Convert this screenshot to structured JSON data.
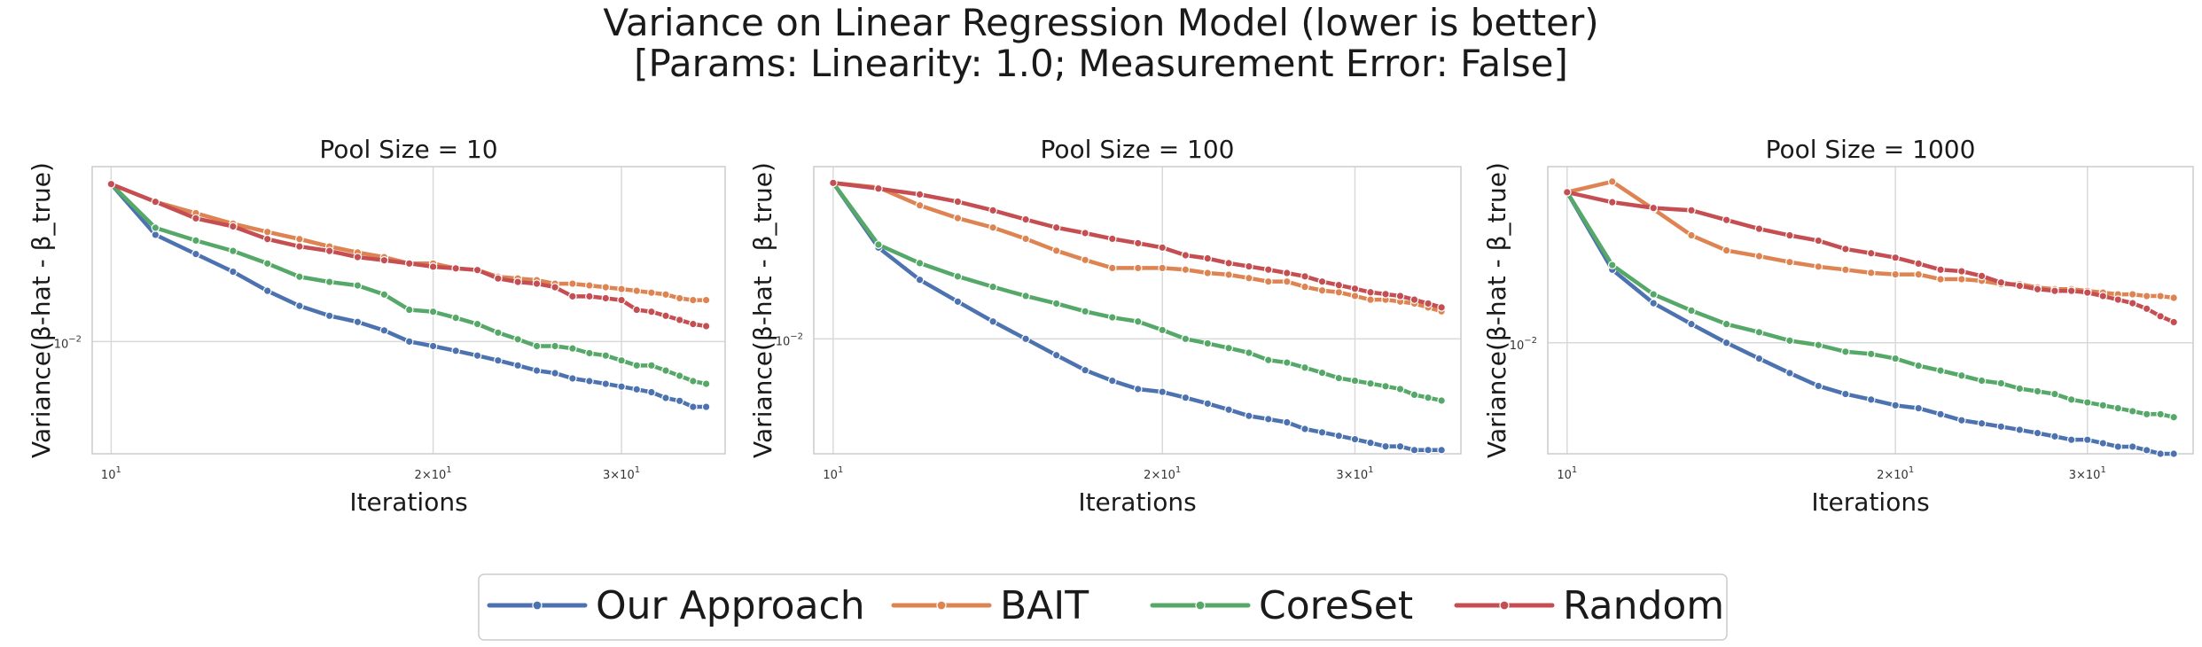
{
  "figure": {
    "title_line1": "Variance on Linear Regression Model (lower is better)",
    "title_line2": "[Params: Linearity: 1.0; Measurement Error: False]"
  },
  "colors": {
    "Our Approach": "#4c72b0",
    "BAIT": "#dd8452",
    "CoreSet": "#55a868",
    "Random": "#c44e52",
    "grid": "#d9d9d9",
    "frame": "#cccccc"
  },
  "legend": {
    "placement": "bottom-center",
    "entries": [
      "Our Approach",
      "BAIT",
      "CoreSet",
      "Random"
    ]
  },
  "chart_data": [
    {
      "type": "line",
      "title": "Pool Size = 10",
      "xlabel": "Iterations",
      "ylabel": "Variance(β-hat - β_true)",
      "xscale": "log",
      "yscale": "log",
      "xlim": [
        9.6,
        37.5
      ],
      "ylim": [
        0.0061,
        0.0216
      ],
      "xticks": [
        {
          "value": 10,
          "base": "10",
          "exp": "1"
        },
        {
          "value": 20,
          "base": "2×10",
          "exp": "1"
        },
        {
          "value": 30,
          "base": "3×10",
          "exp": "1"
        }
      ],
      "yticks": [
        {
          "value": 0.01,
          "base": "10",
          "exp": "−2"
        }
      ],
      "grid": true,
      "x": [
        10,
        11,
        12,
        13,
        14,
        15,
        16,
        17,
        18,
        19,
        20,
        21,
        22,
        23,
        24,
        25,
        26,
        27,
        28,
        29,
        30,
        31,
        32,
        33,
        34,
        35,
        36
      ],
      "series": [
        {
          "name": "Our Approach",
          "values": [
            0.02,
            0.016,
            0.0147,
            0.0136,
            0.0125,
            0.0117,
            0.0112,
            0.0109,
            0.0105,
            0.01,
            0.0098,
            0.0096,
            0.0094,
            0.0092,
            0.009,
            0.0088,
            0.0087,
            0.0085,
            0.0084,
            0.0083,
            0.0082,
            0.0081,
            0.008,
            0.0078,
            0.0077,
            0.0075,
            0.0075
          ]
        },
        {
          "name": "BAIT",
          "values": [
            0.02,
            0.0185,
            0.0176,
            0.0168,
            0.0162,
            0.0157,
            0.0152,
            0.0148,
            0.0145,
            0.0141,
            0.0141,
            0.0138,
            0.0137,
            0.0133,
            0.0132,
            0.0131,
            0.0129,
            0.0129,
            0.0128,
            0.0127,
            0.0126,
            0.0125,
            0.0124,
            0.0123,
            0.0121,
            0.012,
            0.012
          ]
        },
        {
          "name": "CoreSet",
          "values": [
            0.02,
            0.0165,
            0.0156,
            0.0149,
            0.0141,
            0.0133,
            0.013,
            0.0128,
            0.0123,
            0.0115,
            0.0114,
            0.0111,
            0.0108,
            0.0104,
            0.0101,
            0.0098,
            0.0098,
            0.0097,
            0.0095,
            0.0094,
            0.0092,
            0.009,
            0.009,
            0.0088,
            0.0086,
            0.0084,
            0.0083
          ]
        },
        {
          "name": "Random",
          "values": [
            0.02,
            0.0185,
            0.0172,
            0.0166,
            0.0157,
            0.0152,
            0.0149,
            0.0145,
            0.0143,
            0.0141,
            0.0139,
            0.0138,
            0.0137,
            0.0132,
            0.013,
            0.0129,
            0.0127,
            0.0122,
            0.0122,
            0.0121,
            0.012,
            0.0115,
            0.0114,
            0.0112,
            0.011,
            0.0108,
            0.0107
          ]
        }
      ]
    },
    {
      "type": "line",
      "title": "Pool Size = 100",
      "xlabel": "Iterations",
      "ylabel": "Variance(β-hat - β_true)",
      "xscale": "log",
      "yscale": "log",
      "xlim": [
        9.6,
        37.5
      ],
      "ylim": [
        0.006,
        0.0215
      ],
      "xticks": [
        {
          "value": 10,
          "base": "10",
          "exp": "1"
        },
        {
          "value": 20,
          "base": "2×10",
          "exp": "1"
        },
        {
          "value": 30,
          "base": "3×10",
          "exp": "1"
        }
      ],
      "yticks": [
        {
          "value": 0.01,
          "base": "10",
          "exp": "−2"
        }
      ],
      "grid": true,
      "x": [
        10,
        11,
        12,
        13,
        14,
        15,
        16,
        17,
        18,
        19,
        20,
        21,
        22,
        23,
        24,
        25,
        26,
        27,
        28,
        29,
        30,
        31,
        32,
        33,
        34,
        35,
        36
      ],
      "series": [
        {
          "name": "Our Approach",
          "values": [
            0.02,
            0.015,
            0.013,
            0.0118,
            0.0108,
            0.01,
            0.0093,
            0.0087,
            0.0083,
            0.008,
            0.0079,
            0.0077,
            0.0075,
            0.0073,
            0.0071,
            0.007,
            0.0069,
            0.0067,
            0.0066,
            0.0065,
            0.0064,
            0.0063,
            0.0062,
            0.0062,
            0.0061,
            0.0061,
            0.0061
          ]
        },
        {
          "name": "BAIT",
          "values": [
            0.02,
            0.0196,
            0.0181,
            0.0171,
            0.0164,
            0.0156,
            0.0148,
            0.0142,
            0.0137,
            0.0137,
            0.0137,
            0.0136,
            0.0134,
            0.0133,
            0.0131,
            0.0129,
            0.0129,
            0.0126,
            0.0124,
            0.0123,
            0.0121,
            0.0119,
            0.0119,
            0.0118,
            0.0117,
            0.0115,
            0.0113
          ]
        },
        {
          "name": "CoreSet",
          "values": [
            0.02,
            0.0152,
            0.014,
            0.0132,
            0.0126,
            0.0121,
            0.0117,
            0.0113,
            0.011,
            0.0108,
            0.0104,
            0.01,
            0.0098,
            0.0096,
            0.0094,
            0.0091,
            0.009,
            0.0088,
            0.0086,
            0.0084,
            0.0083,
            0.0082,
            0.0081,
            0.008,
            0.0078,
            0.0077,
            0.0076
          ]
        },
        {
          "name": "Random",
          "values": [
            0.02,
            0.0195,
            0.019,
            0.0184,
            0.0177,
            0.017,
            0.0164,
            0.016,
            0.0156,
            0.0153,
            0.015,
            0.0145,
            0.0143,
            0.014,
            0.0138,
            0.0136,
            0.0134,
            0.0132,
            0.0129,
            0.0127,
            0.0125,
            0.0123,
            0.0122,
            0.0121,
            0.0119,
            0.0117,
            0.0115
          ]
        }
      ]
    },
    {
      "type": "line",
      "title": "Pool Size = 1000",
      "xlabel": "Iterations",
      "ylabel": "Variance(β-hat - β_true)",
      "xscale": "log",
      "yscale": "log",
      "xlim": [
        9.6,
        37.5
      ],
      "ylim": [
        0.006,
        0.0225
      ],
      "xticks": [
        {
          "value": 10,
          "base": "10",
          "exp": "1"
        },
        {
          "value": 20,
          "base": "2×10",
          "exp": "1"
        },
        {
          "value": 30,
          "base": "3×10",
          "exp": "1"
        }
      ],
      "yticks": [
        {
          "value": 0.01,
          "base": "10",
          "exp": "−2"
        }
      ],
      "grid": true,
      "x": [
        10,
        11,
        12,
        13,
        14,
        15,
        16,
        17,
        18,
        19,
        20,
        21,
        22,
        23,
        24,
        25,
        26,
        27,
        28,
        29,
        30,
        31,
        32,
        33,
        34,
        35,
        36
      ],
      "series": [
        {
          "name": "Our Approach",
          "values": [
            0.02,
            0.014,
            0.012,
            0.0109,
            0.01,
            0.0093,
            0.0087,
            0.0082,
            0.0079,
            0.0077,
            0.0075,
            0.0074,
            0.0072,
            0.007,
            0.0069,
            0.0068,
            0.0067,
            0.0066,
            0.0065,
            0.0064,
            0.0064,
            0.0063,
            0.0062,
            0.0062,
            0.0061,
            0.006,
            0.006
          ]
        },
        {
          "name": "BAIT",
          "values": [
            0.02,
            0.021,
            0.0185,
            0.0164,
            0.0153,
            0.0149,
            0.0145,
            0.0142,
            0.014,
            0.0138,
            0.0137,
            0.0137,
            0.0134,
            0.0134,
            0.0133,
            0.0131,
            0.0131,
            0.0129,
            0.0128,
            0.0128,
            0.0127,
            0.0126,
            0.0125,
            0.0125,
            0.0124,
            0.0124,
            0.0123
          ]
        },
        {
          "name": "CoreSet",
          "values": [
            0.02,
            0.0143,
            0.0125,
            0.0116,
            0.0109,
            0.0105,
            0.0101,
            0.0099,
            0.0096,
            0.0095,
            0.0093,
            0.009,
            0.0088,
            0.0086,
            0.0084,
            0.0083,
            0.0081,
            0.008,
            0.0079,
            0.0077,
            0.0076,
            0.0075,
            0.0074,
            0.0073,
            0.0072,
            0.0072,
            0.0071
          ]
        },
        {
          "name": "Random",
          "values": [
            0.02,
            0.0191,
            0.0186,
            0.0184,
            0.0176,
            0.0169,
            0.0164,
            0.016,
            0.0154,
            0.0151,
            0.0148,
            0.0144,
            0.014,
            0.0139,
            0.0136,
            0.0132,
            0.013,
            0.0128,
            0.0127,
            0.0127,
            0.0126,
            0.0124,
            0.0122,
            0.012,
            0.0117,
            0.0113,
            0.011
          ]
        }
      ]
    }
  ]
}
